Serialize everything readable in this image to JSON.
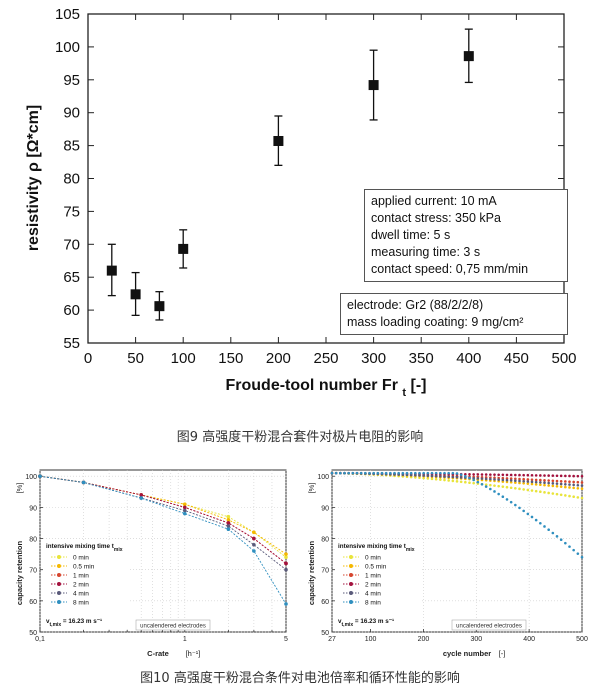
{
  "chart_data": [
    {
      "type": "scatter",
      "title": "",
      "xlabel": "Froude-tool number Fr",
      "xlabel_sub": "t",
      "xlabel_unit": "[-]",
      "ylabel": "resistivity ρ [Ω*cm]",
      "xlim": [
        0,
        500
      ],
      "ylim": [
        55,
        105
      ],
      "xticks": [
        "0",
        "50",
        "100",
        "150",
        "200",
        "250",
        "300",
        "350",
        "400",
        "450",
        "500"
      ],
      "yticks": [
        "55",
        "60",
        "65",
        "70",
        "75",
        "80",
        "85",
        "90",
        "95",
        "100",
        "105"
      ],
      "x": [
        25,
        50,
        75,
        100,
        200,
        300,
        400
      ],
      "y": [
        66.0,
        62.4,
        60.6,
        69.3,
        85.7,
        94.2,
        98.6
      ],
      "err_low": [
        62.2,
        59.2,
        58.5,
        66.4,
        82.0,
        88.9,
        94.6
      ],
      "err_high": [
        70.0,
        65.7,
        62.8,
        72.2,
        89.5,
        99.5,
        102.7
      ],
      "info_box": [
        "applied current: 10 mA",
        "contact stress: 350 kPa",
        "dwell time: 5 s",
        "measuring time: 3 s",
        "contact speed: 0,75 mm/min"
      ],
      "info_box2": [
        "electrode: Gr2 (88/2/2/8)",
        "mass loading coating: 9 mg/cm²"
      ]
    },
    {
      "type": "line",
      "xlabel": "C-rate",
      "xlabel_unit": "[h⁻¹]",
      "ylabel": "capacity retention",
      "ylabel_unit": "[%]",
      "xscale": "log",
      "xlim": [
        0.1,
        5
      ],
      "ylim": [
        50,
        102
      ],
      "xticks": [
        "0,1",
        "1",
        "5"
      ],
      "yticks": [
        "50",
        "60",
        "70",
        "80",
        "90",
        "100"
      ],
      "x": [
        0.1,
        0.2,
        0.5,
        1,
        2,
        3,
        5
      ],
      "series": [
        {
          "name": "0 min",
          "color": "#e8e43a",
          "values": [
            100,
            98,
            94,
            91,
            87,
            82,
            74
          ]
        },
        {
          "name": "0.5 min",
          "color": "#f5b800",
          "values": [
            100,
            98,
            94,
            91,
            86,
            82,
            75
          ]
        },
        {
          "name": "1 min",
          "color": "#d6452e",
          "values": [
            100,
            98,
            94,
            90,
            85,
            80,
            72
          ]
        },
        {
          "name": "2 min",
          "color": "#a3123e",
          "values": [
            100,
            98,
            94,
            90,
            85,
            80,
            72
          ]
        },
        {
          "name": "4 min",
          "color": "#5a5a7a",
          "values": [
            100,
            98,
            93,
            89,
            84,
            78,
            70
          ]
        },
        {
          "name": "8 min",
          "color": "#2f8fbf",
          "values": [
            100,
            98,
            93,
            88,
            83,
            76,
            59
          ]
        }
      ],
      "legend_title": "intensive mixing time t",
      "legend_title_sub": "mix",
      "legend_foot": "v",
      "legend_foot_sub": "t,mix",
      "legend_foot_val": " = 16.23 m s⁻¹",
      "note": "uncalendered electrodes"
    },
    {
      "type": "scatter",
      "xlabel": "cycle number",
      "xlabel_unit": "[-]",
      "ylabel": "capacity retention",
      "ylabel_unit": "[%]",
      "xlim": [
        27,
        500
      ],
      "ylim": [
        50,
        102
      ],
      "xticks": [
        "27",
        "100",
        "200",
        "300",
        "400",
        "500"
      ],
      "yticks": [
        "50",
        "60",
        "70",
        "80",
        "90",
        "100"
      ],
      "series": [
        {
          "name": "0 min",
          "color": "#e8e43a",
          "start": 101,
          "end": 93
        },
        {
          "name": "0.5 min",
          "color": "#f5b800",
          "start": 101,
          "end": 96
        },
        {
          "name": "1 min",
          "color": "#d6452e",
          "start": 101,
          "end": 98
        },
        {
          "name": "2 min",
          "color": "#a3123e",
          "start": 101,
          "end": 100
        },
        {
          "name": "4 min",
          "color": "#5a5a7a",
          "start": 101,
          "end": 97
        },
        {
          "name": "8 min",
          "color": "#2f8fbf",
          "start": 101,
          "end": 74
        }
      ],
      "legend_title": "intensive mixing time t",
      "legend_title_sub": "mix",
      "legend_foot": "v",
      "legend_foot_sub": "t,mix",
      "legend_foot_val": " = 16.23 m s⁻¹",
      "note": "uncalendered electrodes"
    }
  ],
  "captions": {
    "fig9": "图9 高强度干粉混合套件对极片电阻的影响",
    "fig10": "图10 高强度干粉混合条件对电池倍率和循环性能的影响"
  }
}
